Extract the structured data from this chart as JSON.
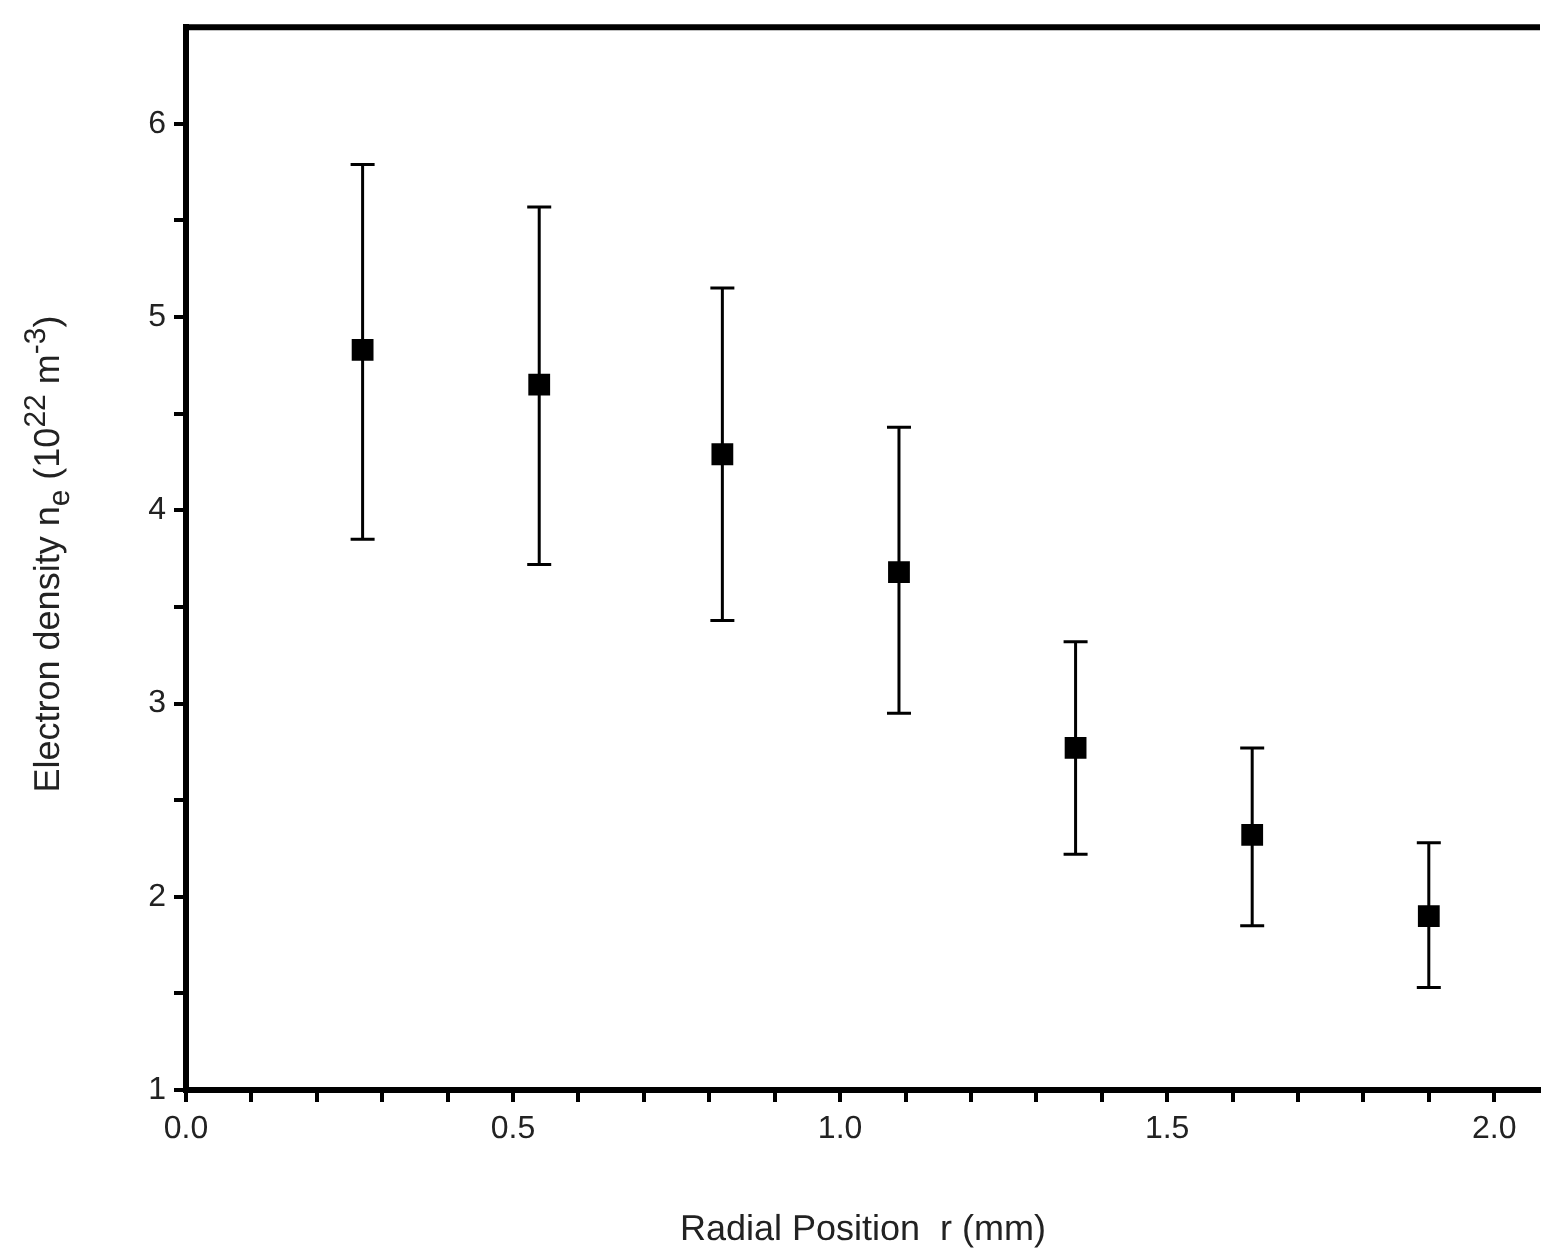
{
  "chart_data": {
    "type": "scatter",
    "xlabel": "Radial Position  r (mm)",
    "ylabel": "Electron density  n$_{e}$ (10$^{22}$ m$^{-3}$)",
    "x": [
      0.27,
      0.54,
      0.82,
      1.09,
      1.36,
      1.63,
      1.9
    ],
    "series": [
      {
        "color": "#000000",
        "values": [
          4.83,
          4.65,
          4.29,
          3.68,
          2.77,
          2.32,
          1.9
        ],
        "errors": [
          [
            3.85,
            5.79
          ],
          [
            3.72,
            5.57
          ],
          [
            3.43,
            5.15
          ],
          [
            2.95,
            4.43
          ],
          [
            2.22,
            3.32
          ],
          [
            1.85,
            2.77
          ],
          [
            1.53,
            2.28
          ]
        ]
      }
    ],
    "marker": "square",
    "grid": false,
    "legend": false,
    "xlim": [
      0,
      2.07
    ],
    "xticks": [
      {
        "value": 0,
        "label": "0.0"
      },
      {
        "value": 0.1,
        "label": null
      },
      {
        "value": 0.2,
        "label": null
      },
      {
        "value": 0.3,
        "label": null
      },
      {
        "value": 0.4,
        "label": null
      },
      0.5,
      {
        "value": 0.6,
        "label": null
      },
      {
        "value": 0.7,
        "label": null
      },
      {
        "value": 0.8,
        "label": null
      },
      {
        "value": 0.9,
        "label": null
      },
      {
        "value": 1,
        "label": "1.0"
      },
      {
        "value": 1.1,
        "label": null
      },
      {
        "value": 1.2,
        "label": null
      },
      {
        "value": 1.3,
        "label": null
      },
      {
        "value": 1.4,
        "label": null
      },
      1.5,
      {
        "value": 1.6,
        "label": null
      },
      {
        "value": 1.7,
        "label": null
      },
      {
        "value": 1.8,
        "label": null
      },
      {
        "value": 1.9,
        "label": null
      },
      {
        "value": 2,
        "label": "2.0"
      }
    ],
    "ylim": [
      1,
      6.5
    ],
    "yticks": [
      1,
      {
        "value": 1.5,
        "label": null
      },
      2,
      {
        "value": 2.5,
        "label": null
      },
      3,
      {
        "value": 3.5,
        "label": null
      },
      4,
      {
        "value": 4.5,
        "label": null
      },
      5,
      {
        "value": 5.5,
        "label": null
      },
      6
    ]
  }
}
